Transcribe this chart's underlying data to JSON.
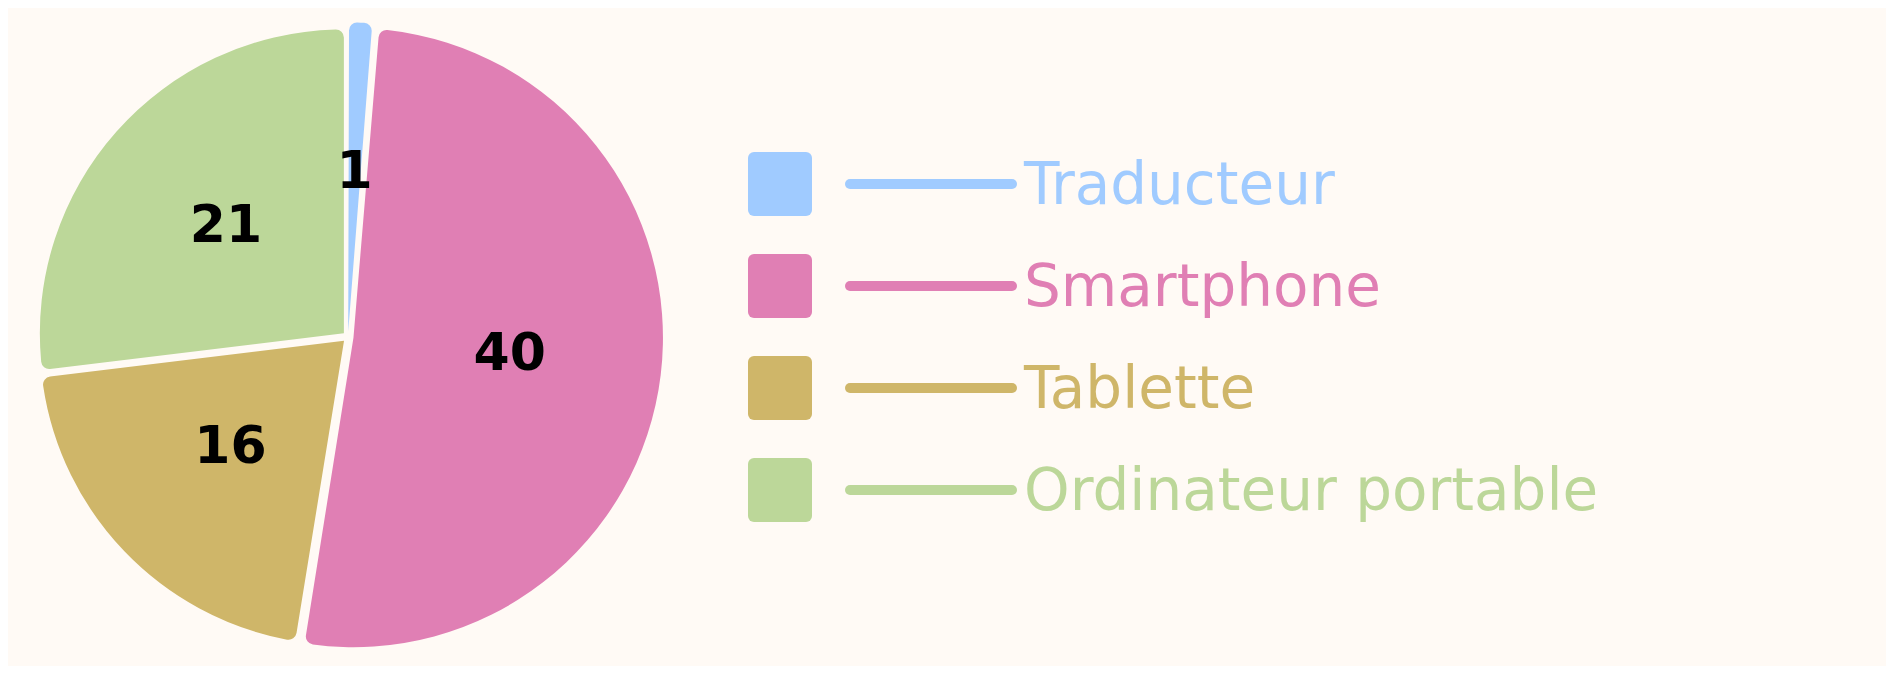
{
  "chart_data": {
    "type": "pie",
    "categories": [
      "Traducteur",
      "Smartphone",
      "Tablette",
      "Ordinateur portable"
    ],
    "values": [
      1,
      40,
      16,
      21
    ],
    "colors": [
      "#a0cbff",
      "#e07fb4",
      "#cfb669",
      "#bcd799"
    ],
    "data_labels": true,
    "legend": "right"
  }
}
